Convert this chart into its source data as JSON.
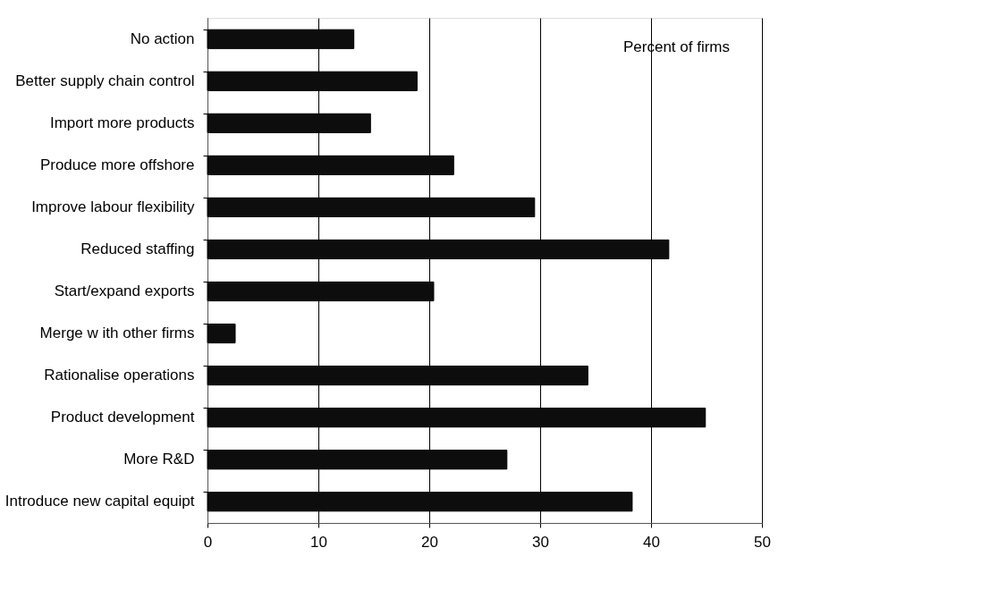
{
  "chart_data": {
    "type": "bar",
    "orientation": "horizontal",
    "categories": [
      "No action",
      "Better supply chain control",
      "Import more products",
      "Produce more offshore",
      "Improve labour flexibility",
      "Reduced staffing",
      "Start/expand exports",
      "Merge w ith other firms",
      "Rationalise operations",
      "Product development",
      "More R&D",
      "Introduce new capital equipt"
    ],
    "values": [
      13.2,
      18.9,
      14.7,
      22.2,
      29.5,
      41.6,
      20.4,
      2.5,
      34.3,
      44.9,
      27.0,
      38.3
    ],
    "color": "#0d0d0d",
    "xlim": [
      0,
      50
    ],
    "xticks": [
      0,
      10,
      20,
      30,
      40,
      50
    ],
    "grid": "x",
    "annotations": [
      "Percent of firms"
    ]
  }
}
